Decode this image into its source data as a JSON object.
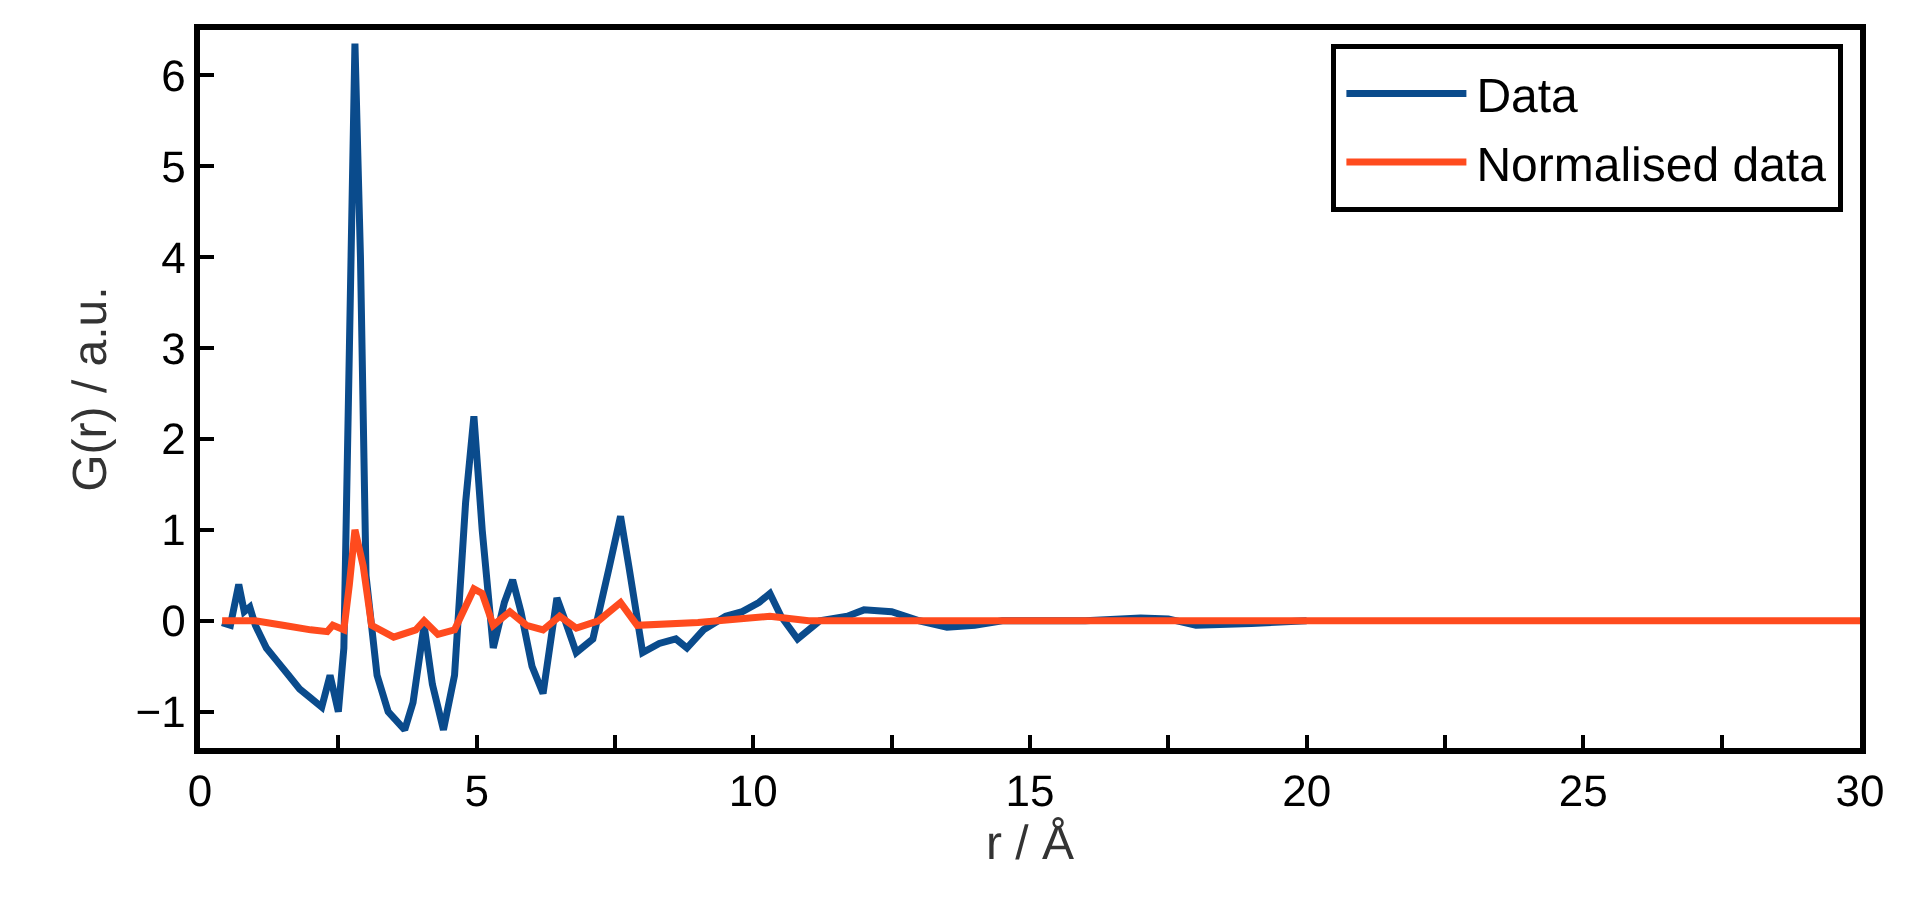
{
  "chart_data": {
    "type": "line",
    "xlabel": "r / Å",
    "ylabel": "G(r) / a.u.",
    "xlim": [
      0,
      30
    ],
    "ylim": [
      -1.4,
      6.5
    ],
    "xticks": [
      0,
      {
        "value": 2.5,
        "label": null
      },
      5,
      {
        "value": 7.5,
        "label": null
      },
      10,
      {
        "value": 12.5,
        "label": null
      },
      15,
      {
        "value": 17.5,
        "label": null
      },
      20,
      {
        "value": 22.5,
        "label": null
      },
      25,
      {
        "value": 27.5,
        "label": null
      },
      30
    ],
    "yticks": [
      {
        "value": -1,
        "label": "−1"
      },
      0,
      1,
      2,
      3,
      4,
      5,
      6
    ],
    "legend": "top right",
    "marker": "none",
    "line_style": "solid",
    "series": [
      {
        "name": "Data",
        "color": "#0a4b8c",
        "x": [
          0.4,
          0.55,
          0.7,
          0.8,
          0.9,
          1.0,
          1.2,
          1.4,
          1.6,
          1.8,
          2.0,
          2.2,
          2.35,
          2.5,
          2.6,
          2.7,
          2.8,
          2.9,
          3.0,
          3.2,
          3.4,
          3.7,
          3.85,
          4.05,
          4.2,
          4.4,
          4.6,
          4.8,
          4.95,
          5.1,
          5.3,
          5.5,
          5.65,
          5.8,
          6.0,
          6.2,
          6.45,
          6.6,
          6.8,
          7.1,
          7.4,
          7.6,
          7.75,
          8.0,
          8.3,
          8.6,
          8.8,
          9.1,
          9.5,
          9.8,
          10.1,
          10.3,
          10.5,
          10.8,
          11.2,
          11.7,
          12.0,
          12.5,
          13.0,
          13.5,
          14.0,
          14.5,
          15.0,
          16.0,
          17.0,
          17.5,
          18.0,
          19.0,
          20.0
        ],
        "values": [
          -0.02,
          -0.05,
          0.4,
          0.1,
          0.15,
          -0.05,
          -0.3,
          -0.45,
          -0.6,
          -0.75,
          -0.85,
          -0.95,
          -0.6,
          -1.0,
          -0.3,
          3.0,
          6.35,
          4.0,
          0.5,
          -0.6,
          -1.0,
          -1.2,
          -0.9,
          -0.05,
          -0.7,
          -1.2,
          -0.6,
          1.3,
          2.25,
          1.0,
          -0.3,
          0.2,
          0.45,
          0.1,
          -0.5,
          -0.8,
          0.25,
          0.0,
          -0.35,
          -0.2,
          0.6,
          1.15,
          0.6,
          -0.35,
          -0.25,
          -0.2,
          -0.3,
          -0.1,
          0.05,
          0.1,
          0.2,
          0.3,
          0.05,
          -0.2,
          0.0,
          0.05,
          0.12,
          0.1,
          0.0,
          -0.07,
          -0.05,
          0.0,
          0.0,
          0.0,
          0.03,
          0.02,
          -0.05,
          -0.03,
          0.0
        ]
      },
      {
        "name": "Normalised data",
        "color": "#ff4b1e",
        "x": [
          0.4,
          1.0,
          1.5,
          2.0,
          2.3,
          2.4,
          2.6,
          2.7,
          2.8,
          2.95,
          3.1,
          3.5,
          3.9,
          4.05,
          4.3,
          4.6,
          4.95,
          5.1,
          5.3,
          5.6,
          5.9,
          6.2,
          6.5,
          6.8,
          7.2,
          7.6,
          7.9,
          9.0,
          10.3,
          11.0,
          13.0,
          20.0,
          30.0
        ],
        "values": [
          0.0,
          0.0,
          -0.05,
          -0.1,
          -0.12,
          -0.05,
          -0.1,
          0.4,
          1.0,
          0.6,
          -0.05,
          -0.18,
          -0.1,
          0.0,
          -0.15,
          -0.1,
          0.35,
          0.3,
          -0.05,
          0.1,
          -0.05,
          -0.1,
          0.05,
          -0.08,
          0.0,
          0.2,
          -0.05,
          -0.02,
          0.05,
          0.0,
          0.0,
          0.0,
          0.0
        ]
      }
    ]
  }
}
